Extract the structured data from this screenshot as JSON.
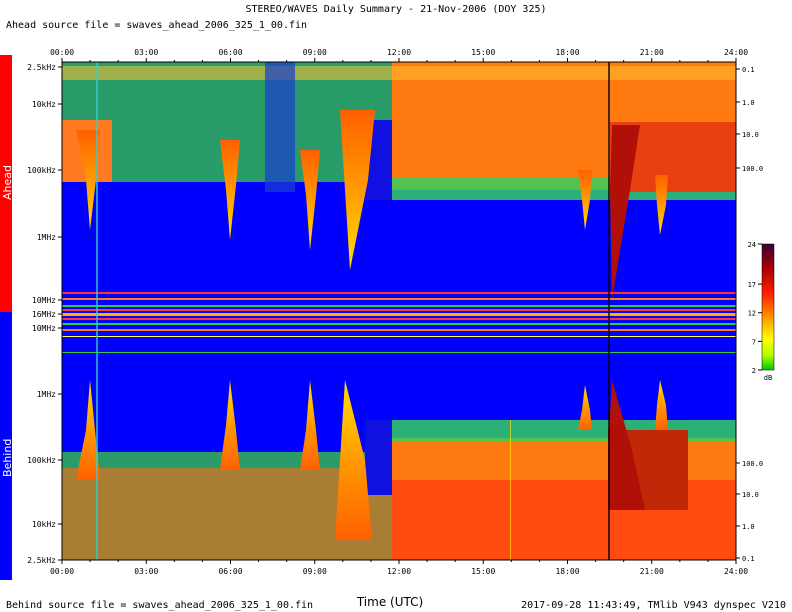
{
  "header": {
    "title": "STEREO/WAVES Daily Summary - 21-Nov-2006 (DOY 325)",
    "ahead_file": "Ahead source file = swaves_ahead_2006_325_1_00.fin",
    "behind_file": "Behind source file = swaves_ahead_2006_325_1_00.fin",
    "footer": "2017-09-28 11:43:49, TMlib V943 dynspec V210"
  },
  "panels": {
    "ahead_label": "Ahead",
    "behind_label": "Behind"
  },
  "colors": {
    "ahead": "#ff0000",
    "behind": "#0000ff",
    "background_spectrum": "#0000ff"
  },
  "chart_data": {
    "type": "heatmap",
    "title": "STEREO/WAVES Daily Summary - 21-Nov-2006 (DOY 325)",
    "xlabel": "Time (UTC)",
    "x_ticks": [
      "00:00",
      "03:00",
      "06:00",
      "09:00",
      "12:00",
      "15:00",
      "18:00",
      "21:00",
      "24:00"
    ],
    "xlim": [
      "00:00",
      "24:00"
    ],
    "left_axis": {
      "ahead_ticks": [
        "2.5kHz",
        "10kHz",
        "100kHz",
        "1MHz",
        "10MHz"
      ],
      "center_tick": "16MHz",
      "behind_ticks": [
        "10MHz",
        "1MHz",
        "100kHz",
        "10kHz",
        "2.5kHz"
      ],
      "scale": "log"
    },
    "right_axis": {
      "ahead_ticks": [
        "0.1",
        "1.0",
        "10.0",
        "100.0"
      ],
      "behind_ticks": [
        "100.0",
        "10.0",
        "1.0",
        "0.1"
      ]
    },
    "colorbar": {
      "ticks": [
        24,
        17,
        12,
        7,
        2
      ],
      "unit": "dB",
      "range": [
        2,
        24
      ]
    }
  }
}
